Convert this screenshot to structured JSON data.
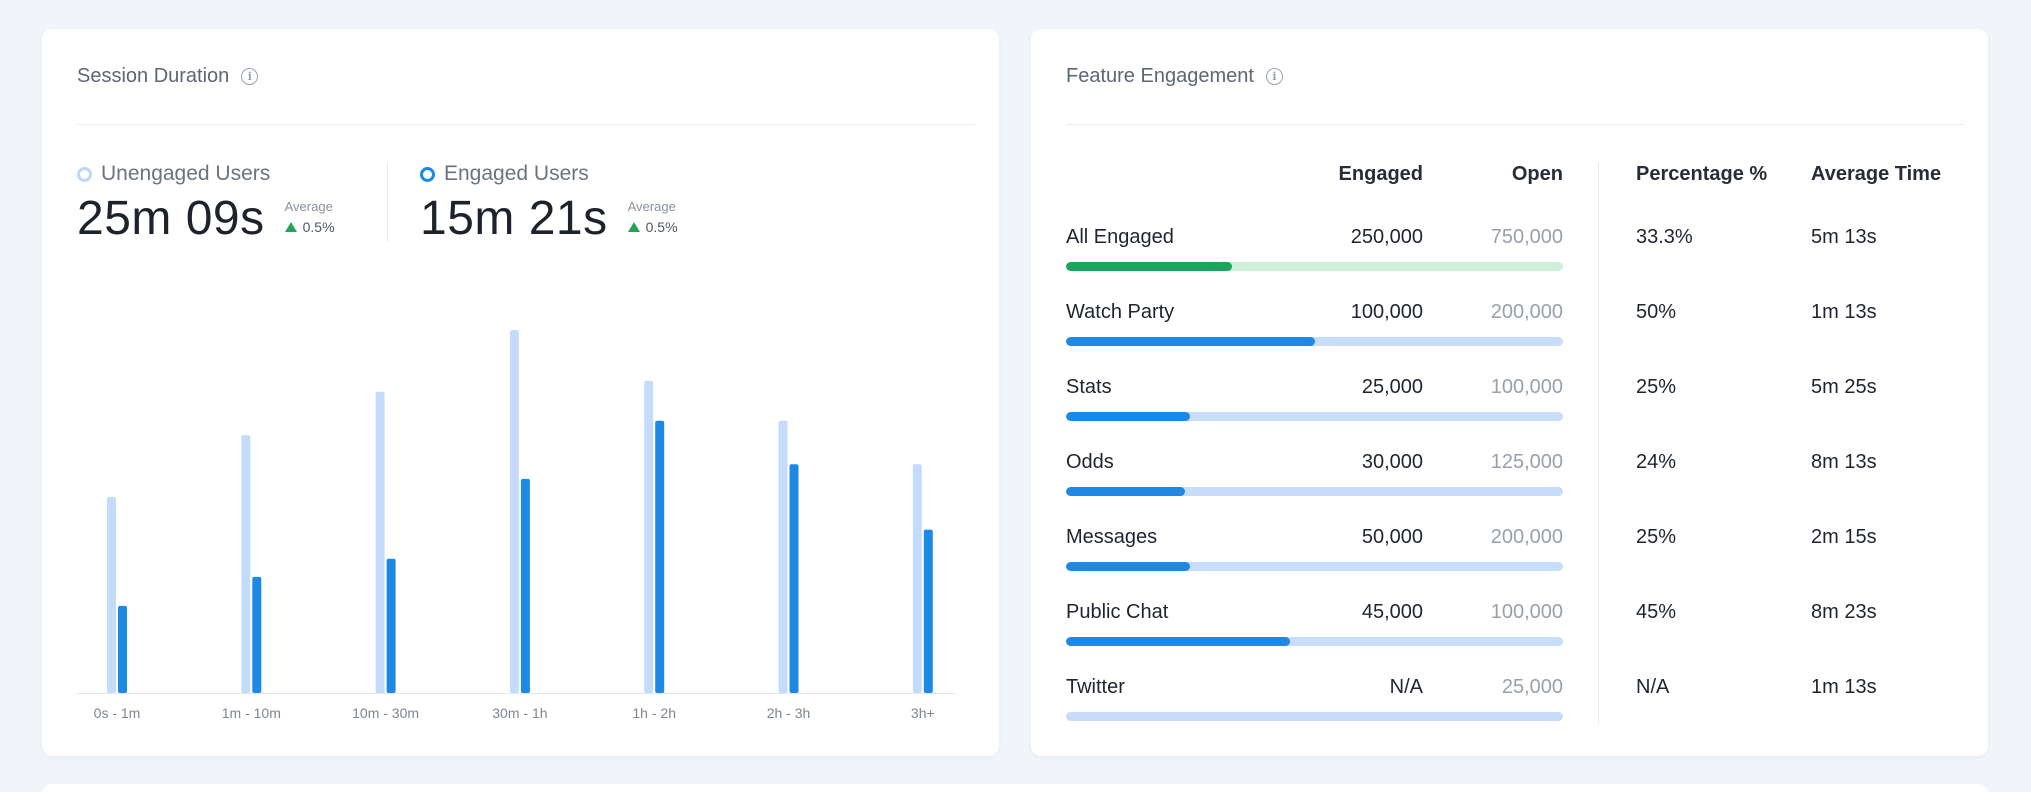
{
  "session": {
    "title": "Session Duration",
    "unengaged": {
      "label": "Unengaged Users",
      "value": "25m 09s",
      "avg_label": "Average",
      "avg_change": "0.5%"
    },
    "engaged": {
      "label": "Engaged Users",
      "value": "15m 21s",
      "avg_label": "Average",
      "avg_change": "0.5%"
    }
  },
  "chart_data": {
    "type": "bar",
    "title": "Session Duration",
    "categories": [
      "0s - 1m",
      "1m - 10m",
      "10m - 30m",
      "30m - 1h",
      "1h - 2h",
      "2h - 3h",
      "3h+"
    ],
    "series": [
      {
        "name": "Unengaged Users",
        "color": "#c4dcfa",
        "values": [
          54,
          71,
          83,
          100,
          86,
          75,
          63
        ]
      },
      {
        "name": "Engaged Users",
        "color": "#1e88e5",
        "values": [
          24,
          32,
          37,
          59,
          75,
          63,
          45
        ]
      }
    ],
    "ylim": [
      0,
      100
    ],
    "xlabel": "",
    "ylabel": ""
  },
  "feature": {
    "title": "Feature Engagement",
    "headers": {
      "engaged": "Engaged",
      "open": "Open",
      "percentage": "Percentage %",
      "avg_time": "Average Time"
    },
    "rows": [
      {
        "label": "All Engaged",
        "engaged": "250,000",
        "open": "750,000",
        "percentage": "33.3%",
        "avg_time": "5m 13s",
        "progress": 0.333,
        "color": "green"
      },
      {
        "label": "Watch Party",
        "engaged": "100,000",
        "open": "200,000",
        "percentage": "50%",
        "avg_time": "1m 13s",
        "progress": 0.5,
        "color": "blue"
      },
      {
        "label": "Stats",
        "engaged": "25,000",
        "open": "100,000",
        "percentage": "25%",
        "avg_time": "5m 25s",
        "progress": 0.25,
        "color": "blue"
      },
      {
        "label": "Odds",
        "engaged": "30,000",
        "open": "125,000",
        "percentage": "24%",
        "avg_time": "8m 13s",
        "progress": 0.24,
        "color": "blue"
      },
      {
        "label": "Messages",
        "engaged": "50,000",
        "open": "200,000",
        "percentage": "25%",
        "avg_time": "2m 15s",
        "progress": 0.25,
        "color": "blue"
      },
      {
        "label": "Public Chat",
        "engaged": "45,000",
        "open": "100,000",
        "percentage": "45%",
        "avg_time": "8m 23s",
        "progress": 0.45,
        "color": "blue"
      },
      {
        "label": "Twitter",
        "engaged": "N/A",
        "open": "25,000",
        "percentage": "N/A",
        "avg_time": "1m 13s",
        "progress": 0,
        "color": "blue"
      }
    ]
  }
}
